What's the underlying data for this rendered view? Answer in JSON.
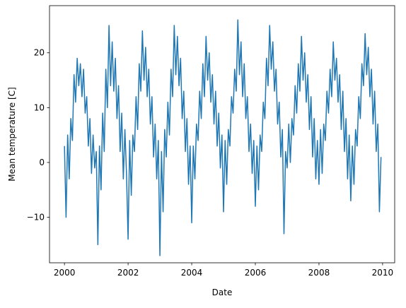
{
  "chart_data": {
    "type": "line",
    "xlabel": "Date",
    "ylabel": "Mean temperature [C]",
    "x": [
      2000.0,
      2000.05,
      2000.1,
      2000.15,
      2000.2,
      2000.25,
      2000.3,
      2000.35,
      2000.4,
      2000.45,
      2000.5,
      2000.55,
      2000.6,
      2000.65,
      2000.7,
      2000.75,
      2000.8,
      2000.85,
      2000.9,
      2000.95,
      2001.0,
      2001.05,
      2001.1,
      2001.15,
      2001.2,
      2001.25,
      2001.3,
      2001.35,
      2001.4,
      2001.45,
      2001.5,
      2001.55,
      2001.6,
      2001.65,
      2001.7,
      2001.75,
      2001.8,
      2001.85,
      2001.9,
      2001.95,
      2002.0,
      2002.05,
      2002.1,
      2002.15,
      2002.2,
      2002.25,
      2002.3,
      2002.35,
      2002.4,
      2002.45,
      2002.5,
      2002.55,
      2002.6,
      2002.65,
      2002.7,
      2002.75,
      2002.8,
      2002.85,
      2002.9,
      2002.95,
      2003.0,
      2003.05,
      2003.1,
      2003.15,
      2003.2,
      2003.25,
      2003.3,
      2003.35,
      2003.4,
      2003.45,
      2003.5,
      2003.55,
      2003.6,
      2003.65,
      2003.7,
      2003.75,
      2003.8,
      2003.85,
      2003.9,
      2003.95,
      2004.0,
      2004.05,
      2004.1,
      2004.15,
      2004.2,
      2004.25,
      2004.3,
      2004.35,
      2004.4,
      2004.45,
      2004.5,
      2004.55,
      2004.6,
      2004.65,
      2004.7,
      2004.75,
      2004.8,
      2004.85,
      2004.9,
      2004.95,
      2005.0,
      2005.05,
      2005.1,
      2005.15,
      2005.2,
      2005.25,
      2005.3,
      2005.35,
      2005.4,
      2005.45,
      2005.5,
      2005.55,
      2005.6,
      2005.65,
      2005.7,
      2005.75,
      2005.8,
      2005.85,
      2005.9,
      2005.95,
      2006.0,
      2006.05,
      2006.1,
      2006.15,
      2006.2,
      2006.25,
      2006.3,
      2006.35,
      2006.4,
      2006.45,
      2006.5,
      2006.55,
      2006.6,
      2006.65,
      2006.7,
      2006.75,
      2006.8,
      2006.85,
      2006.9,
      2006.95,
      2007.0,
      2007.05,
      2007.1,
      2007.15,
      2007.2,
      2007.25,
      2007.3,
      2007.35,
      2007.4,
      2007.45,
      2007.5,
      2007.55,
      2007.6,
      2007.65,
      2007.7,
      2007.75,
      2007.8,
      2007.85,
      2007.9,
      2007.95,
      2008.0,
      2008.05,
      2008.1,
      2008.15,
      2008.2,
      2008.25,
      2008.3,
      2008.35,
      2008.4,
      2008.45,
      2008.5,
      2008.55,
      2008.6,
      2008.65,
      2008.7,
      2008.75,
      2008.8,
      2008.85,
      2008.9,
      2008.95,
      2009.0,
      2009.05,
      2009.1,
      2009.15,
      2009.2,
      2009.25,
      2009.3,
      2009.35,
      2009.4,
      2009.45,
      2009.5,
      2009.55,
      2009.6,
      2009.65,
      2009.7,
      2009.75,
      2009.8,
      2009.85,
      2009.9,
      2009.95
    ],
    "series": [
      {
        "color": "#1f77b4",
        "values": [
          3,
          -10,
          5,
          -3,
          8,
          4,
          16,
          11,
          19,
          14,
          18,
          12,
          17,
          9,
          12,
          3,
          8,
          -2,
          5,
          -1,
          2,
          -15,
          3,
          -5,
          9,
          2,
          17,
          10,
          25,
          14,
          22,
          13,
          19,
          8,
          14,
          2,
          9,
          -3,
          6,
          -2,
          -14,
          4,
          -6,
          5,
          2,
          12,
          6,
          18,
          13,
          24,
          15,
          21,
          12,
          17,
          7,
          12,
          1,
          7,
          -3,
          4,
          -17,
          2,
          -9,
          6,
          1,
          11,
          5,
          17,
          12,
          25,
          16,
          23,
          14,
          19,
          8,
          13,
          2,
          8,
          -4,
          3,
          -11,
          3,
          -3,
          7,
          4,
          13,
          8,
          18,
          12,
          23,
          15,
          20,
          11,
          16,
          7,
          13,
          3,
          9,
          -1,
          5,
          -9,
          4,
          -4,
          6,
          3,
          12,
          9,
          17,
          13,
          26,
          16,
          22,
          12,
          18,
          8,
          12,
          2,
          7,
          -2,
          4,
          -8,
          3,
          -5,
          5,
          2,
          11,
          8,
          19,
          14,
          25,
          17,
          22,
          13,
          17,
          7,
          11,
          1,
          6,
          -13,
          2,
          -1,
          7,
          0,
          8,
          5,
          14,
          9,
          18,
          13,
          23,
          15,
          20,
          11,
          16,
          6,
          12,
          1,
          8,
          -3,
          4,
          -4,
          6,
          -2,
          7,
          4,
          13,
          9,
          17,
          12,
          22,
          15,
          19,
          11,
          16,
          6,
          13,
          2,
          8,
          -3,
          5,
          -7,
          3,
          -4,
          6,
          3,
          12,
          8,
          18,
          14,
          23.5,
          16,
          21,
          12,
          17,
          7,
          13,
          2,
          7,
          -9,
          1
        ]
      }
    ],
    "xlim": [
      1999.53,
      2010.38
    ],
    "xticks": [
      2000,
      2002,
      2004,
      2006,
      2008,
      2010
    ],
    "ylim": [
      -18.3,
      28.6
    ],
    "yticks": [
      {
        "value": -10,
        "label": "−10"
      },
      0,
      10,
      20
    ]
  }
}
